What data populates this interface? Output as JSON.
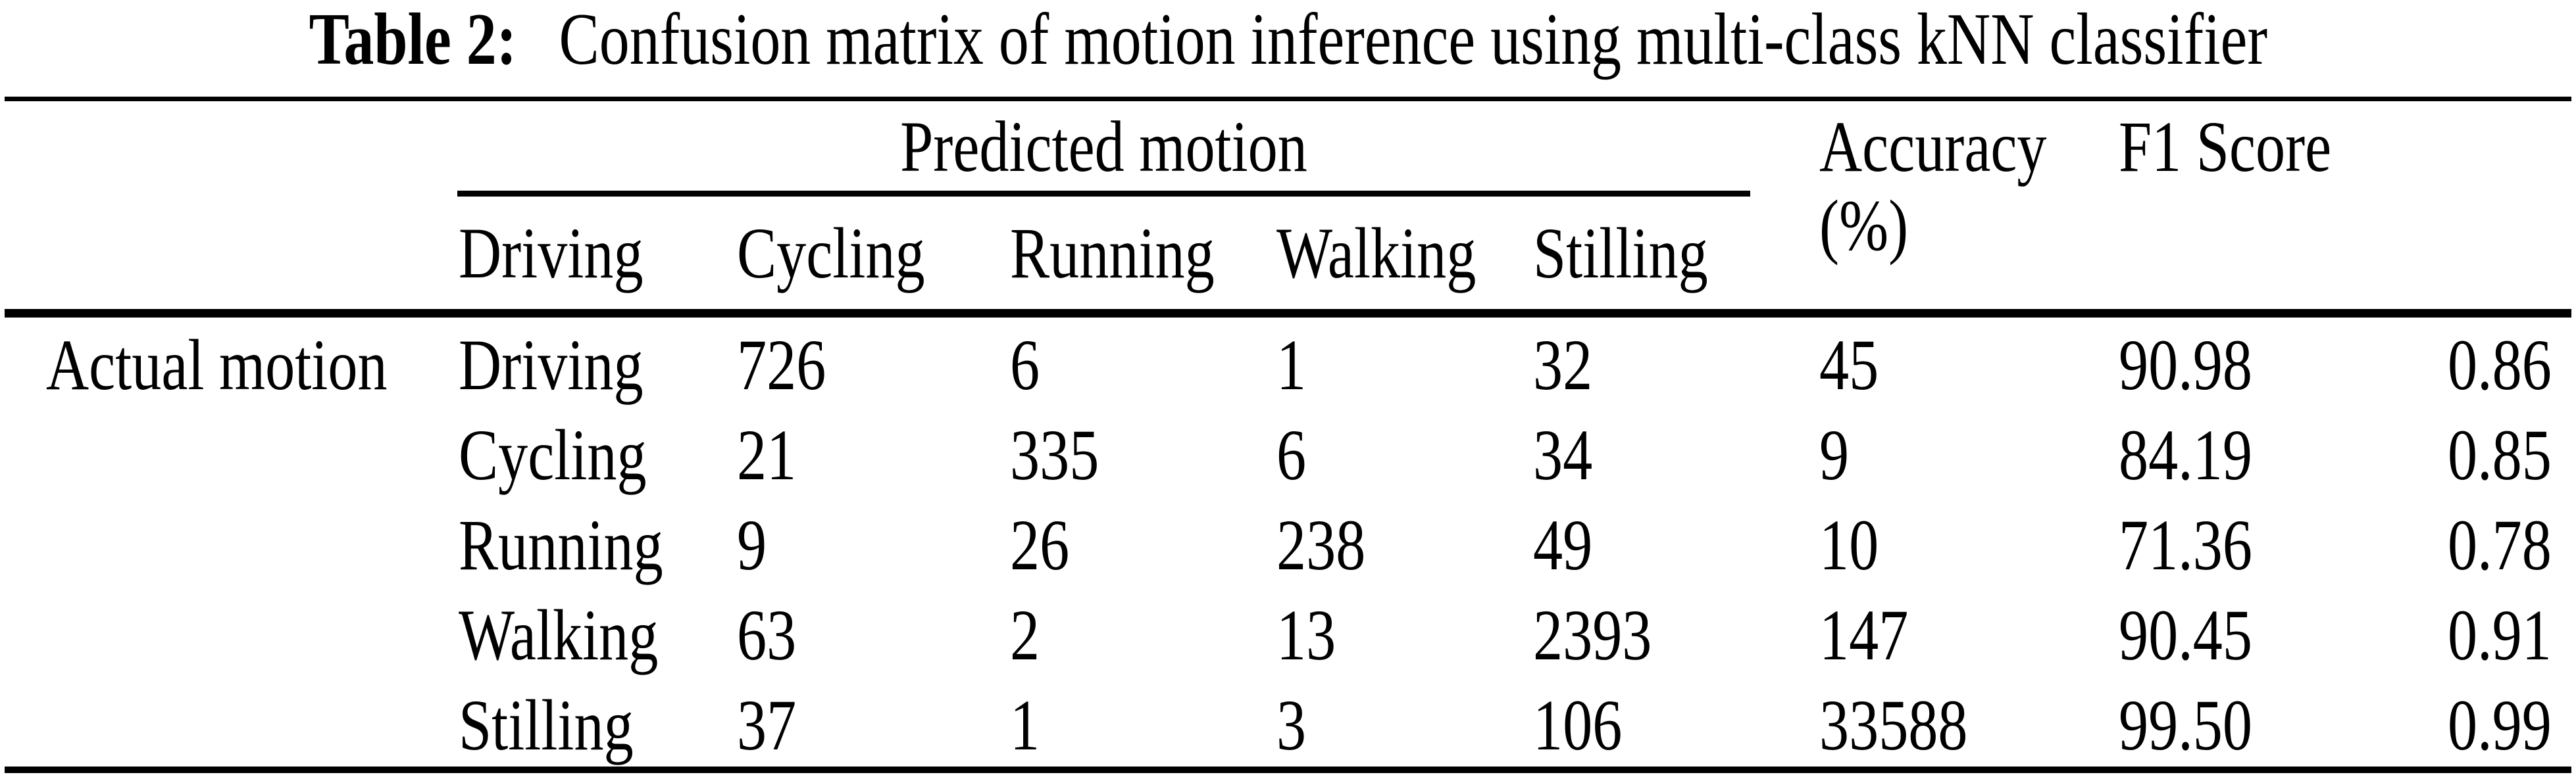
{
  "page": {
    "background_color": "#ffffff",
    "text_color": "#000000"
  },
  "caption": {
    "label": "Table 2:",
    "text": "Confusion matrix of motion inference using multi-class kNN classifier"
  },
  "table": {
    "column_group_header": "Predicted motion",
    "accuracy_header_line1": "Accuracy",
    "accuracy_header_line2": "(%)",
    "f1_header": "F1 Score",
    "predicted_headers": [
      "Driving",
      "Cycling",
      "Running",
      "Walking",
      "Stilling"
    ],
    "row_group_label": "Actual motion",
    "rows": [
      {
        "label": "Driving",
        "values": [
          "726",
          "6",
          "1",
          "32",
          "45",
          "90.98",
          "0.86"
        ]
      },
      {
        "label": "Cycling",
        "values": [
          "21",
          "335",
          "6",
          "34",
          "9",
          "84.19",
          "0.85"
        ]
      },
      {
        "label": "Running",
        "values": [
          "9",
          "26",
          "238",
          "49",
          "10",
          "71.36",
          "0.78"
        ]
      },
      {
        "label": "Walking",
        "values": [
          "63",
          "2",
          "13",
          "2393",
          "147",
          "90.45",
          "0.91"
        ]
      },
      {
        "label": "Stilling",
        "values": [
          "37",
          "1",
          "3",
          "106",
          "33588",
          "99.50",
          "0.99"
        ]
      }
    ]
  }
}
